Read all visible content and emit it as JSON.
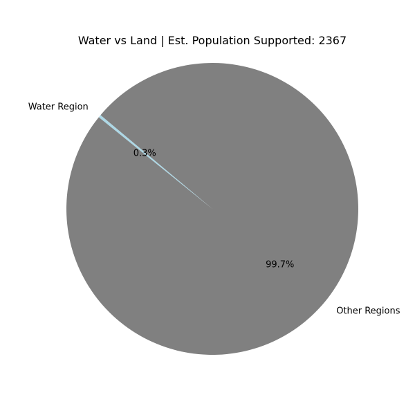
{
  "chart_data": {
    "type": "pie",
    "title": "Water vs Land | Est. Population Supported: 2367",
    "start_angle_deg": 140,
    "direction": "counterclockwise",
    "slices": [
      {
        "label": "Water Region",
        "value": 0.3,
        "pct_label": "0.3%",
        "color": "#add8e6"
      },
      {
        "label": "Other Regions",
        "value": 99.7,
        "pct_label": "99.7%",
        "color": "#808080"
      }
    ]
  }
}
